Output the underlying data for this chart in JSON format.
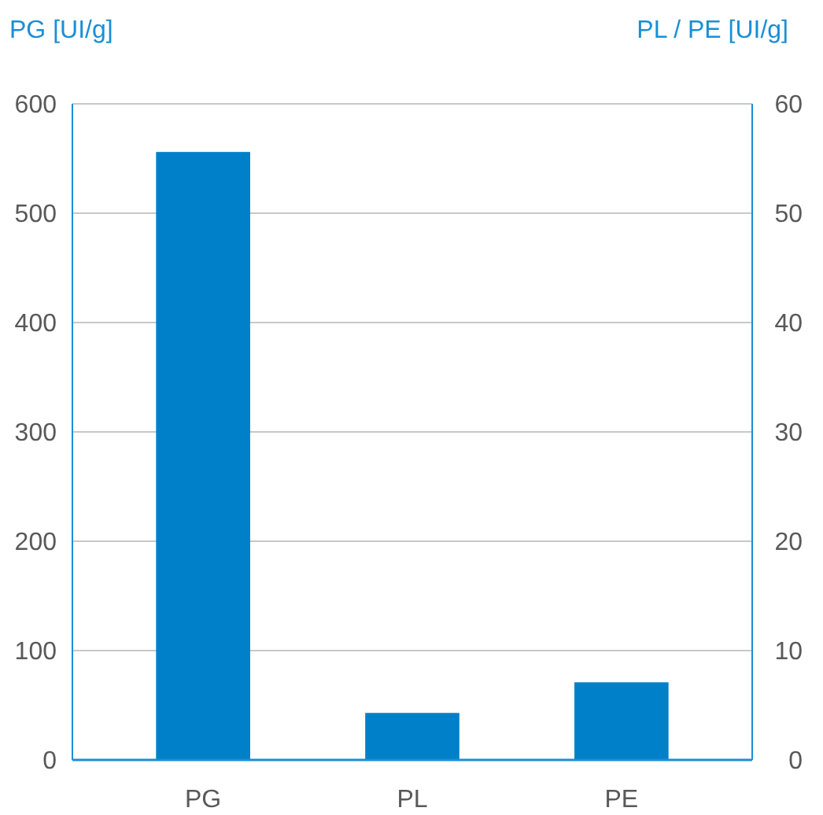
{
  "chart_data": {
    "type": "bar",
    "ylabel": "PG [UI/g]",
    "y2label": "PL / PE [UI/g]",
    "categories": [
      "PG",
      "PL",
      "PE"
    ],
    "series": [
      {
        "color": "#0080c8",
        "values": [
          556,
          null,
          null
        ]
      },
      {
        "color": "#0080c8",
        "axis": "y2",
        "values": [
          null,
          4.3,
          7.1
        ]
      }
    ],
    "ylim": [
      0,
      600
    ],
    "yticks": [
      0,
      100,
      200,
      300,
      400,
      500,
      600
    ],
    "y2lim": [
      0,
      60
    ],
    "y2ticks": [
      0,
      10,
      20,
      30,
      40,
      50,
      60
    ],
    "grid": "y"
  }
}
